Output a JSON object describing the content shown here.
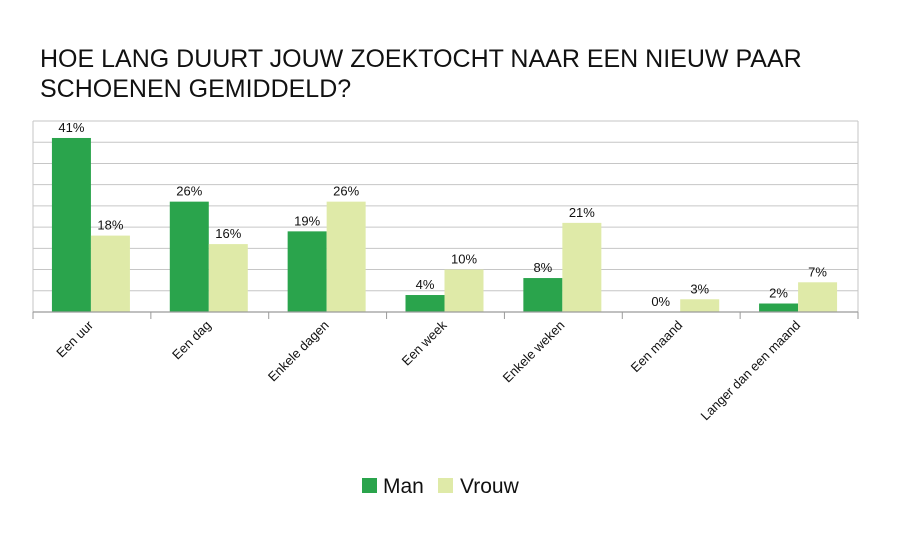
{
  "chart_data": {
    "type": "bar",
    "title": "HOE LANG DUURT JOUW ZOEKTOCHT NAAR EEN NIEUW PAAR SCHOENEN GEMIDDELD?",
    "categories": [
      "Een uur",
      "Een dag",
      "Enkele dagen",
      "Een week",
      "Enkele weken",
      "Een maand",
      "Langer dan een maand"
    ],
    "series": [
      {
        "name": "Man",
        "values": [
          41,
          26,
          19,
          4,
          8,
          0,
          2
        ],
        "labels": [
          "41%",
          "26%",
          "19%",
          "4%",
          "8%",
          "0%",
          "2%"
        ],
        "color": "#2aa44c"
      },
      {
        "name": "Vrouw",
        "values": [
          18,
          16,
          26,
          10,
          21,
          3,
          7
        ],
        "labels": [
          "18%",
          "16%",
          "26%",
          "10%",
          "21%",
          "3%",
          "7%"
        ],
        "color": "#dfeaa8"
      }
    ],
    "ylim": [
      0,
      45
    ],
    "grid_step": 5,
    "grid": true,
    "legend": "bottom-center",
    "xlabel": "",
    "ylabel": ""
  }
}
